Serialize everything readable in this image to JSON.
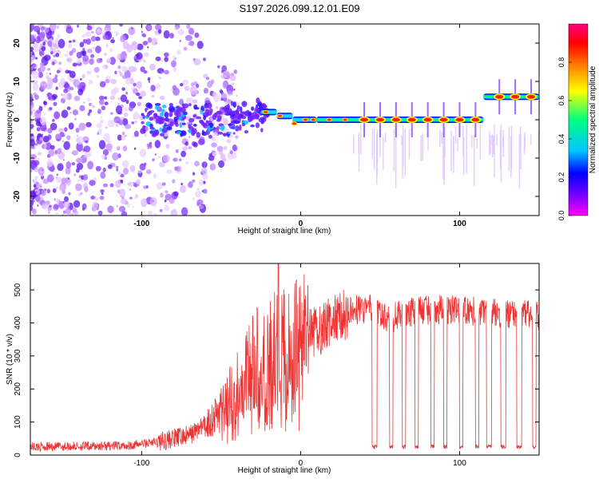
{
  "title": "S197.2026.099.12.01.E09",
  "chart_data": [
    {
      "type": "heatmap",
      "xlabel": "Height of straight line (km)",
      "ylabel": "Frequency (Hz)",
      "xlim": [
        -170,
        150
      ],
      "ylim": [
        -25,
        25
      ],
      "xticks": [
        -100,
        0,
        100
      ],
      "yticks": [
        -20,
        -10,
        0,
        10,
        20
      ],
      "colorbar": {
        "label": "Normalized spectral amplitude",
        "range": [
          0.0,
          1.0
        ],
        "ticks": [
          "0.0",
          "0.2",
          "0.4",
          "0.6",
          "0.8"
        ],
        "stops": [
          "#ff00ff",
          "#8000ff",
          "#0000ff",
          "#00c8ff",
          "#00ff80",
          "#ffff00",
          "#ff8000",
          "#ff0000",
          "#ff0080"
        ]
      },
      "ridge": {
        "segments": [
          {
            "x": [
              -25,
              -15
            ],
            "freq": 2,
            "amplitude": 0.5
          },
          {
            "x": [
              -15,
              -5
            ],
            "freq": 1,
            "amplitude": 0.6
          },
          {
            "x": [
              -5,
              10
            ],
            "freq": 0,
            "amplitude": 0.7
          },
          {
            "x": [
              10,
              115
            ],
            "freq": 0,
            "amplitude": 0.9
          },
          {
            "x": [
              115,
              150
            ],
            "freq": 6,
            "amplitude": 0.9
          }
        ],
        "pulse_centers": [
          40,
          50,
          60,
          70,
          80,
          90,
          100,
          110,
          125,
          135,
          145
        ]
      }
    },
    {
      "type": "line",
      "xlabel": "Height of straight line (km)",
      "ylabel": "SNR (10 * v/v)",
      "xlim": [
        -170,
        150
      ],
      "ylim": [
        0,
        580
      ],
      "xticks": [
        -100,
        0,
        100
      ],
      "yticks": [
        0,
        100,
        200,
        300,
        400,
        500
      ],
      "color": "#ee3333",
      "envelope": [
        [
          -170,
          25
        ],
        [
          -110,
          28
        ],
        [
          -90,
          40
        ],
        [
          -70,
          60
        ],
        [
          -55,
          110
        ],
        [
          -45,
          170
        ],
        [
          -35,
          250
        ],
        [
          -25,
          300
        ],
        [
          -15,
          330
        ],
        [
          -5,
          340
        ],
        [
          5,
          360
        ],
        [
          15,
          390
        ],
        [
          25,
          420
        ],
        [
          35,
          440
        ],
        [
          45,
          445
        ],
        [
          55,
          410
        ],
        [
          65,
          430
        ],
        [
          80,
          440
        ],
        [
          100,
          440
        ],
        [
          120,
          430
        ],
        [
          140,
          430
        ],
        [
          150,
          420
        ]
      ],
      "dropouts": [
        {
          "x": [
            45,
            48
          ],
          "level": 25
        },
        {
          "x": [
            56,
            58
          ],
          "level": 25
        },
        {
          "x": [
            64,
            66
          ],
          "level": 25
        },
        {
          "x": [
            72,
            74
          ],
          "level": 25
        },
        {
          "x": [
            82,
            84
          ],
          "level": 25
        },
        {
          "x": [
            90,
            92
          ],
          "level": 25
        },
        {
          "x": [
            100,
            102
          ],
          "level": 25
        },
        {
          "x": [
            110,
            112
          ],
          "level": 25
        },
        {
          "x": [
            117,
            120
          ],
          "level": 25
        },
        {
          "x": [
            126,
            129
          ],
          "level": 25
        },
        {
          "x": [
            136,
            139
          ],
          "level": 25
        },
        {
          "x": [
            146,
            148
          ],
          "level": 25
        }
      ],
      "peak": {
        "x": -14,
        "value": 580
      }
    }
  ]
}
